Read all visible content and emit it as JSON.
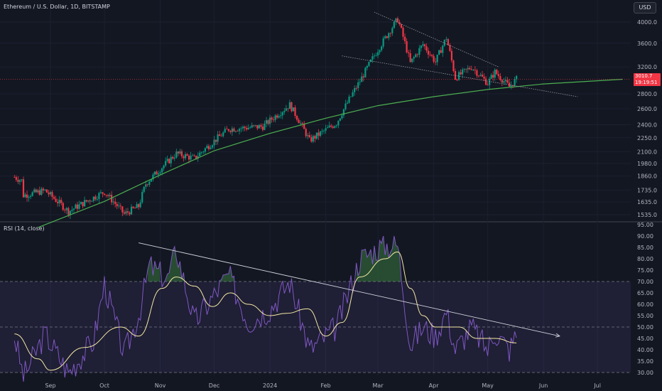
{
  "header": {
    "title": "Ethereum / U.S. Dollar, 1D, BITSTAMP",
    "currency_button": "USD"
  },
  "price_tag": {
    "price": "3010.7",
    "countdown": "19:19:51",
    "color": "#f23645"
  },
  "colors": {
    "up": "#089981",
    "down": "#f23645",
    "trend_curve": "#4caf50",
    "rsi": "#7e57c2",
    "rsi_ma": "#f5e8a4",
    "background": "#131722"
  },
  "chart_data": [
    {
      "type": "candlestick",
      "title": "Ethereum / U.S. Dollar, 1D, BITSTAMP",
      "scale": "log",
      "y_ticks": [
        "4000.0",
        "3600.0",
        "3200.0",
        "2800.0",
        "2600.0",
        "2400.0",
        "2250.0",
        "2100.0",
        "1980.0",
        "1860.0",
        "1735.0",
        "1635.0",
        "1535.0"
      ],
      "last_price": 3010.7,
      "anchors": [
        {
          "date": "2023-08-12",
          "close": 1850
        },
        {
          "date": "2023-08-16",
          "close": 1820
        },
        {
          "date": "2023-08-17",
          "close": 1690
        },
        {
          "date": "2023-08-29",
          "close": 1730
        },
        {
          "date": "2023-09-11",
          "close": 1560
        },
        {
          "date": "2023-10-01",
          "close": 1720
        },
        {
          "date": "2023-10-12",
          "close": 1540
        },
        {
          "date": "2023-10-20",
          "close": 1600
        },
        {
          "date": "2023-10-24",
          "close": 1790
        },
        {
          "date": "2023-11-10",
          "close": 2080
        },
        {
          "date": "2023-11-20",
          "close": 2030
        },
        {
          "date": "2023-12-09",
          "close": 2350
        },
        {
          "date": "2023-12-28",
          "close": 2380
        },
        {
          "date": "2024-01-12",
          "close": 2650
        },
        {
          "date": "2024-01-23",
          "close": 2220
        },
        {
          "date": "2024-02-07",
          "close": 2420
        },
        {
          "date": "2024-02-20",
          "close": 2980
        },
        {
          "date": "2024-03-04",
          "close": 3640
        },
        {
          "date": "2024-03-12",
          "close": 4060
        },
        {
          "date": "2024-03-19",
          "close": 3260
        },
        {
          "date": "2024-03-26",
          "close": 3580
        },
        {
          "date": "2024-04-02",
          "close": 3280
        },
        {
          "date": "2024-04-08",
          "close": 3700
        },
        {
          "date": "2024-04-13",
          "close": 3030
        },
        {
          "date": "2024-04-22",
          "close": 3200
        },
        {
          "date": "2024-05-01",
          "close": 2950
        },
        {
          "date": "2024-05-05",
          "close": 3120
        },
        {
          "date": "2024-05-13",
          "close": 2900
        },
        {
          "date": "2024-05-17",
          "close": 3010
        }
      ],
      "trendlines": [
        {
          "from": {
            "date": "2024-02-28",
            "value": 4200
          },
          "to": {
            "date": "2024-05-07",
            "value": 3200
          }
        },
        {
          "from": {
            "date": "2024-02-10",
            "value": 3380
          },
          "to": {
            "date": "2024-06-20",
            "value": 2760
          }
        }
      ],
      "support_curve": [
        {
          "date": "2023-08-25",
          "value": 1440
        },
        {
          "date": "2023-10-01",
          "value": 1640
        },
        {
          "date": "2023-11-01",
          "value": 1870
        },
        {
          "date": "2023-12-01",
          "value": 2110
        },
        {
          "date": "2024-01-01",
          "value": 2300
        },
        {
          "date": "2024-02-01",
          "value": 2480
        },
        {
          "date": "2024-03-01",
          "value": 2640
        },
        {
          "date": "2024-04-01",
          "value": 2760
        },
        {
          "date": "2024-05-01",
          "value": 2860
        },
        {
          "date": "2024-06-01",
          "value": 2940
        },
        {
          "date": "2024-07-15",
          "value": 3010
        }
      ]
    },
    {
      "type": "line",
      "title": "RSI (14, close)",
      "ylim": [
        29,
        95
      ],
      "y_ticks": [
        "95.00",
        "90.00",
        "85.00",
        "80.00",
        "75.00",
        "70.00",
        "65.00",
        "60.00",
        "55.00",
        "50.00",
        "45.00",
        "40.00",
        "35.00",
        "30.00"
      ],
      "bands": {
        "upper": 70,
        "middle": 50,
        "lower": 30
      },
      "rsi_anchors": [
        {
          "date": "2023-08-12",
          "value": 46
        },
        {
          "date": "2023-08-17",
          "value": 28
        },
        {
          "date": "2023-08-29",
          "value": 47
        },
        {
          "date": "2023-09-11",
          "value": 30
        },
        {
          "date": "2023-09-25",
          "value": 44
        },
        {
          "date": "2023-10-01",
          "value": 69
        },
        {
          "date": "2023-10-12",
          "value": 38
        },
        {
          "date": "2023-10-20",
          "value": 55
        },
        {
          "date": "2023-10-26",
          "value": 77
        },
        {
          "date": "2023-11-05",
          "value": 71
        },
        {
          "date": "2023-11-10",
          "value": 84
        },
        {
          "date": "2023-11-20",
          "value": 52
        },
        {
          "date": "2023-12-09",
          "value": 73
        },
        {
          "date": "2023-12-20",
          "value": 52
        },
        {
          "date": "2024-01-01",
          "value": 58
        },
        {
          "date": "2024-01-12",
          "value": 70
        },
        {
          "date": "2024-01-23",
          "value": 40
        },
        {
          "date": "2024-02-07",
          "value": 50
        },
        {
          "date": "2024-02-20",
          "value": 80
        },
        {
          "date": "2024-03-04",
          "value": 86
        },
        {
          "date": "2024-03-12",
          "value": 86
        },
        {
          "date": "2024-03-19",
          "value": 42
        },
        {
          "date": "2024-03-26",
          "value": 50
        },
        {
          "date": "2024-04-02",
          "value": 46
        },
        {
          "date": "2024-04-08",
          "value": 57
        },
        {
          "date": "2024-04-13",
          "value": 40
        },
        {
          "date": "2024-04-22",
          "value": 50
        },
        {
          "date": "2024-05-01",
          "value": 40
        },
        {
          "date": "2024-05-05",
          "value": 48
        },
        {
          "date": "2024-05-13",
          "value": 40
        },
        {
          "date": "2024-05-17",
          "value": 47
        }
      ],
      "ma_anchors": [
        {
          "date": "2023-08-12",
          "value": 47
        },
        {
          "date": "2023-08-25",
          "value": 36
        },
        {
          "date": "2023-09-01",
          "value": 31
        },
        {
          "date": "2023-09-20",
          "value": 41
        },
        {
          "date": "2023-10-10",
          "value": 50
        },
        {
          "date": "2023-10-20",
          "value": 46
        },
        {
          "date": "2023-11-02",
          "value": 67
        },
        {
          "date": "2023-11-10",
          "value": 72
        },
        {
          "date": "2023-11-20",
          "value": 68
        },
        {
          "date": "2023-11-30",
          "value": 59
        },
        {
          "date": "2023-12-10",
          "value": 65
        },
        {
          "date": "2023-12-20",
          "value": 60
        },
        {
          "date": "2024-01-01",
          "value": 55
        },
        {
          "date": "2024-01-10",
          "value": 56
        },
        {
          "date": "2024-01-22",
          "value": 58
        },
        {
          "date": "2024-02-01",
          "value": 46
        },
        {
          "date": "2024-02-10",
          "value": 52
        },
        {
          "date": "2024-02-20",
          "value": 72
        },
        {
          "date": "2024-03-05",
          "value": 80
        },
        {
          "date": "2024-03-12",
          "value": 83
        },
        {
          "date": "2024-03-19",
          "value": 67
        },
        {
          "date": "2024-03-26",
          "value": 55
        },
        {
          "date": "2024-04-02",
          "value": 50
        },
        {
          "date": "2024-04-15",
          "value": 50
        },
        {
          "date": "2024-04-25",
          "value": 45
        },
        {
          "date": "2024-05-05",
          "value": 45
        },
        {
          "date": "2024-05-17",
          "value": 43
        }
      ],
      "trendline": {
        "from": {
          "date": "2023-10-20",
          "value": 87
        },
        "to": {
          "date": "2024-06-10",
          "value": 46
        }
      }
    }
  ],
  "time_axis": {
    "labels": [
      {
        "date": "2023-09-01",
        "text": "Sep"
      },
      {
        "date": "2023-10-01",
        "text": "Oct"
      },
      {
        "date": "2023-11-01",
        "text": "Nov"
      },
      {
        "date": "2023-12-01",
        "text": "Dec"
      },
      {
        "date": "2024-01-01",
        "text": "2024"
      },
      {
        "date": "2024-02-01",
        "text": "Feb"
      },
      {
        "date": "2024-03-01",
        "text": "Mar"
      },
      {
        "date": "2024-04-01",
        "text": "Apr"
      },
      {
        "date": "2024-05-01",
        "text": "May"
      },
      {
        "date": "2024-06-01",
        "text": "Jun"
      },
      {
        "date": "2024-07-01",
        "text": "Jul"
      }
    ]
  }
}
